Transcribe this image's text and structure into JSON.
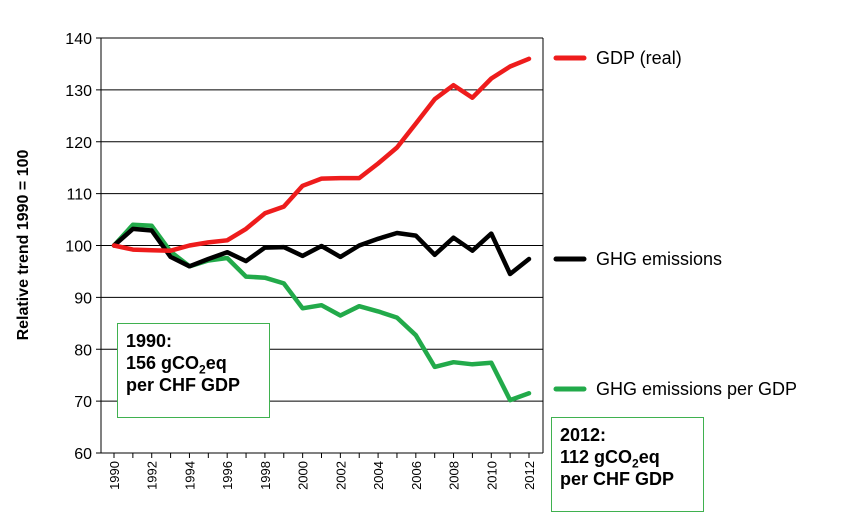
{
  "chart_data": {
    "type": "line",
    "ylabel": "Relative trend   1990 = 100",
    "ylim": [
      60,
      140
    ],
    "yticks": [
      60,
      70,
      80,
      90,
      100,
      110,
      120,
      130,
      140
    ],
    "x": [
      1990,
      1991,
      1992,
      1993,
      1994,
      1995,
      1996,
      1997,
      1998,
      1999,
      2000,
      2001,
      2002,
      2003,
      2004,
      2005,
      2006,
      2007,
      2008,
      2009,
      2010,
      2011,
      2012
    ],
    "xtick_labels": [
      "1990",
      "1992",
      "1994",
      "1996",
      "1998",
      "2000",
      "2002",
      "2004",
      "2006",
      "2008",
      "2010",
      "2012"
    ],
    "grid": "horizontal",
    "series": [
      {
        "name": "GDP (real)",
        "color": "#ee1c1c",
        "values": [
          100,
          99.2,
          99.1,
          99,
          100,
          100.6,
          101,
          103.2,
          106.2,
          107.5,
          111.5,
          112.9,
          113,
          113,
          115.8,
          118.9,
          123.5,
          128.2,
          130.9,
          128.5,
          132.2,
          134.5,
          136
        ]
      },
      {
        "name": "GHG emissions",
        "color": "#000000",
        "values": [
          100,
          103.2,
          102.9,
          97.8,
          96,
          97.4,
          98.7,
          97,
          99.6,
          99.7,
          98,
          99.9,
          97.8,
          100,
          101.3,
          102.4,
          101.9,
          98.2,
          101.5,
          99,
          102.3,
          94.5,
          97.4
        ]
      },
      {
        "name": "GHG emissions per GDP",
        "color": "#22aa4a",
        "values": [
          100,
          104,
          103.8,
          98.8,
          96,
          97.1,
          97.6,
          94,
          93.8,
          92.7,
          87.9,
          88.5,
          86.5,
          88.3,
          87.3,
          86.1,
          82.7,
          76.6,
          77.5,
          77.1,
          77.4,
          70.2,
          71.5
        ]
      }
    ],
    "legend_placement": "right"
  },
  "annotations": {
    "box_1990": {
      "line1": "1990:",
      "line2_prefix": "156 gCO",
      "line2_sub": "2",
      "line2_suffix": "eq",
      "line3": "per CHF GDP"
    },
    "box_2012": {
      "line1": "2012:",
      "line2_prefix": "112 gCO",
      "line2_sub": "2",
      "line2_suffix": "eq",
      "line3": "per CHF GDP"
    }
  }
}
